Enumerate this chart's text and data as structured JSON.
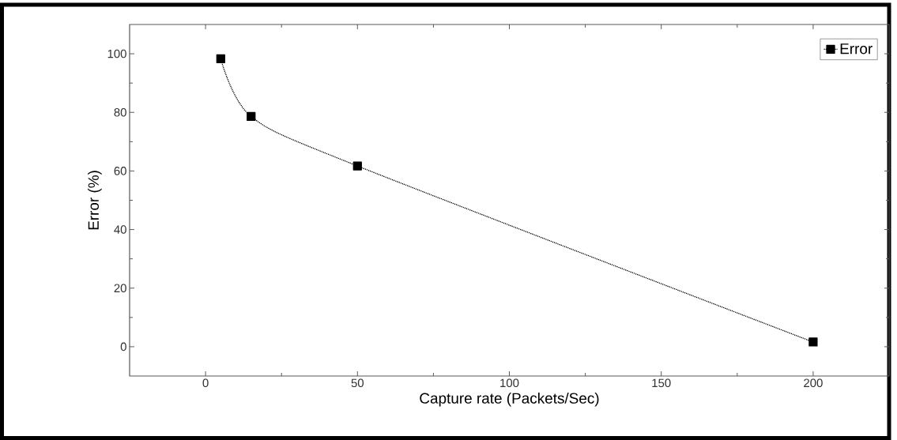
{
  "chart_data": {
    "type": "line",
    "xlabel": "Capture rate (Packets/Sec)",
    "ylabel": "Error (%)",
    "x": [
      5,
      15,
      50,
      200
    ],
    "series": [
      {
        "name": "Error",
        "color": "#000000",
        "values": [
          98.3,
          78.6,
          61.7,
          1.6
        ]
      }
    ],
    "xlim": [
      -25,
      225
    ],
    "ylim": [
      -10,
      110
    ],
    "xticks": [
      0,
      50,
      100,
      150,
      200
    ],
    "yticks": [
      0,
      20,
      40,
      60,
      80,
      100
    ],
    "grid": false,
    "legend": "top right",
    "marker": "square",
    "line_style": "dotted"
  }
}
